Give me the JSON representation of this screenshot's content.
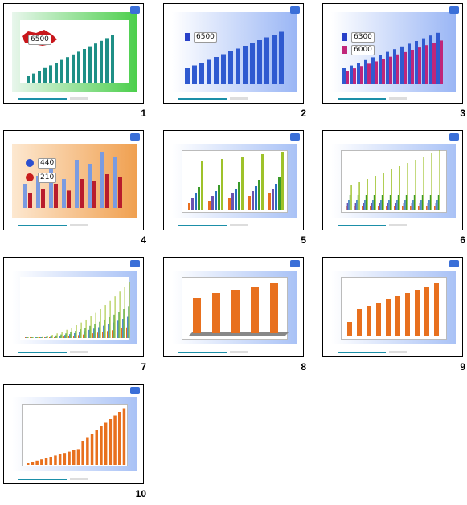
{
  "slides": [
    {
      "number": "1",
      "badge": "6500"
    },
    {
      "number": "2",
      "badge": "6500"
    },
    {
      "number": "3",
      "badge1": "6300",
      "badge2": "6000"
    },
    {
      "number": "4",
      "badge1": "440",
      "badge2": "210"
    },
    {
      "number": "5"
    },
    {
      "number": "6"
    },
    {
      "number": "7"
    },
    {
      "number": "8"
    },
    {
      "number": "9"
    },
    {
      "number": "10"
    }
  ],
  "colors": {
    "teal": "#1f8f86",
    "blue": "#2f5ad0",
    "magenta": "#c0267a",
    "orange": "#e8701e",
    "olive": "#9ec22a",
    "green": "#3a9a2a",
    "purple": "#6a52b0"
  }
}
